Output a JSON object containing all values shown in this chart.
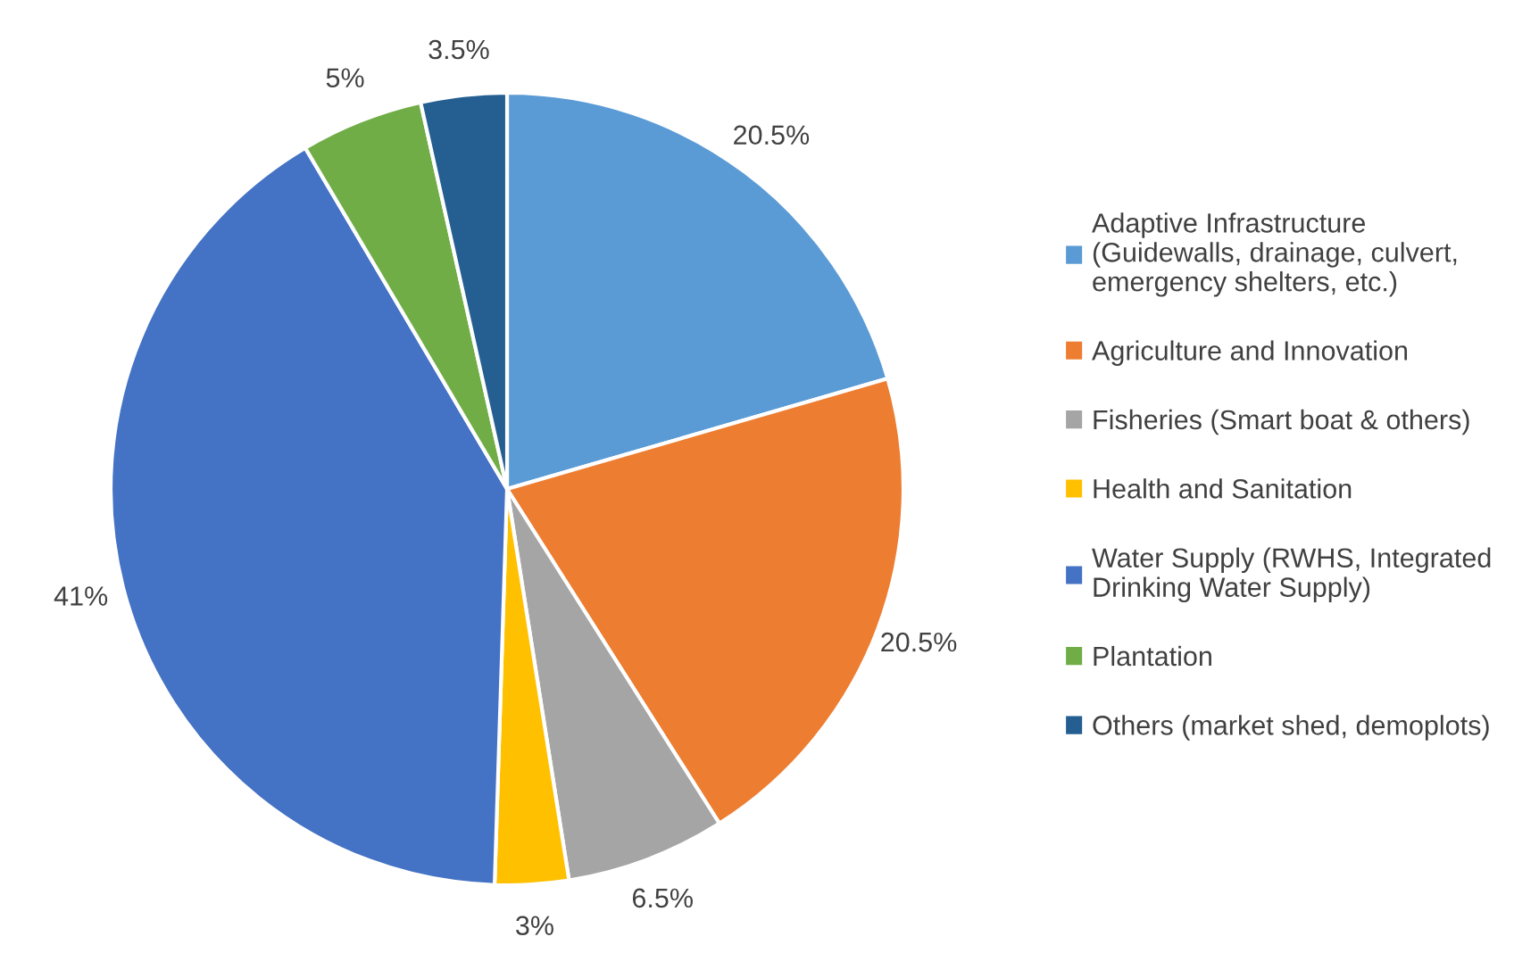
{
  "chart_data": {
    "type": "pie",
    "categories": [
      "Adaptive Infrastructure\n(Guidewalls, drainage, culvert,\nemergency shelters, etc.)",
      "Agriculture and Innovation",
      "Fisheries (Smart boat & others)",
      "Health and Sanitation",
      "Water Supply (RWHS, Integrated\nDrinking Water Supply)",
      "Plantation",
      "Others (market shed, demoplots)"
    ],
    "values": [
      20.5,
      20.5,
      6.5,
      3,
      41,
      5,
      3.5
    ],
    "value_labels": [
      "20.5%",
      "20.5%",
      "6.5%",
      "3%",
      "41%",
      "5%",
      "3.5%"
    ],
    "colors": [
      "#5b9bd5",
      "#ed7d31",
      "#a5a5a5",
      "#ffc000",
      "#4472c4",
      "#70ad47",
      "#255e91"
    ],
    "legend": "right"
  }
}
